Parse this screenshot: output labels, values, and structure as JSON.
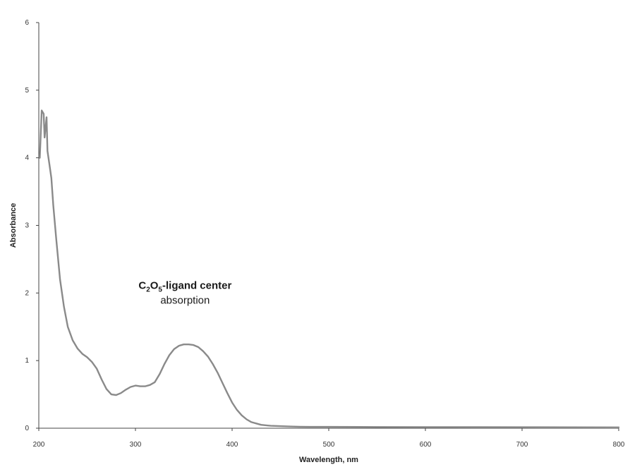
{
  "chart_data": {
    "type": "line",
    "title": "",
    "xlabel": "Wavelength, nm",
    "ylabel": "Absorbance",
    "xlim": [
      200,
      800
    ],
    "ylim": [
      0,
      6
    ],
    "x_ticks": [
      200,
      300,
      400,
      500,
      600,
      700,
      800
    ],
    "y_ticks": [
      0,
      1,
      2,
      3,
      4,
      5,
      6
    ],
    "grid": false,
    "legend": "none",
    "series": [
      {
        "color": "#8a8a8a",
        "x": [
          201,
          203,
          205,
          206,
          208,
          209,
          211,
          213,
          215,
          218,
          222,
          226,
          230,
          235,
          240,
          245,
          250,
          255,
          260,
          265,
          270,
          275,
          280,
          285,
          290,
          295,
          300,
          305,
          310,
          315,
          320,
          325,
          330,
          335,
          340,
          345,
          350,
          355,
          360,
          365,
          370,
          375,
          380,
          385,
          390,
          395,
          400,
          405,
          410,
          415,
          420,
          425,
          430,
          440,
          450,
          460,
          470,
          480,
          500,
          550,
          600,
          650,
          700,
          750,
          800
        ],
        "y": [
          4.0,
          4.7,
          4.65,
          4.3,
          4.6,
          4.1,
          3.9,
          3.7,
          3.3,
          2.8,
          2.2,
          1.8,
          1.5,
          1.3,
          1.18,
          1.1,
          1.05,
          0.98,
          0.88,
          0.72,
          0.58,
          0.5,
          0.49,
          0.52,
          0.57,
          0.61,
          0.63,
          0.62,
          0.62,
          0.64,
          0.68,
          0.8,
          0.95,
          1.08,
          1.17,
          1.22,
          1.24,
          1.24,
          1.23,
          1.2,
          1.14,
          1.06,
          0.95,
          0.82,
          0.67,
          0.52,
          0.38,
          0.27,
          0.19,
          0.13,
          0.09,
          0.07,
          0.05,
          0.035,
          0.03,
          0.025,
          0.022,
          0.02,
          0.02,
          0.018,
          0.017,
          0.016,
          0.015,
          0.014,
          0.013
        ]
      }
    ],
    "annotation": {
      "line1_prefix": "C",
      "line1_sub1": "2",
      "line1_mid": "O",
      "line1_sub2": "5",
      "line1_suffix": "-ligand center",
      "line2": "absorption",
      "at_x": 355,
      "at_y": 2.0
    }
  }
}
